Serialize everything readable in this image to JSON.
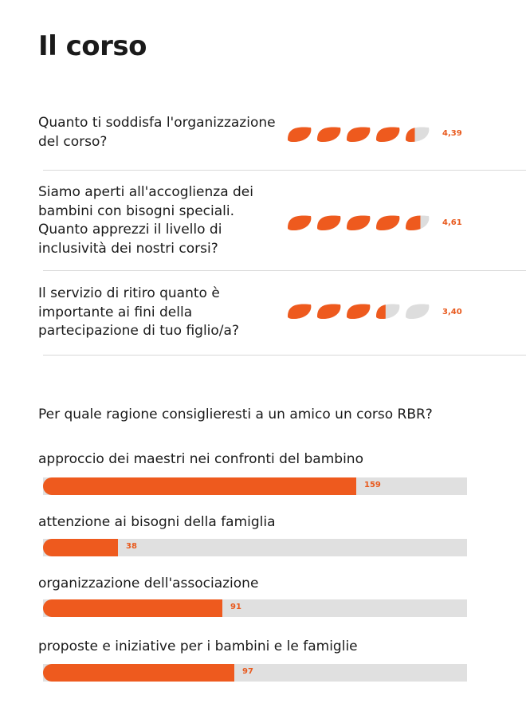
{
  "page": {
    "title": "Il corso"
  },
  "ratings": [
    {
      "question": "Quanto ti soddisfa l'organizzazione del corso?",
      "score_label": "4,39",
      "score": 4.39
    },
    {
      "question": "Siamo aperti all'accoglienza dei bambini con bisogni speciali. Quanto apprezzi il livello di inclusività dei nostri corsi?",
      "score_label": "4,61",
      "score": 4.61
    },
    {
      "question": "Il servizio di ritiro quanto è importante ai fini della partecipazione di tuo figlio/a?",
      "score_label": "3,40",
      "score": 3.4
    }
  ],
  "recommend": {
    "question": "Per quale ragione consiglieresti a un amico un corso RBR?"
  },
  "colors": {
    "accent": "#ee5a1e",
    "track": "#e0e0e0",
    "empty_icon": "#dddddd"
  },
  "chart_data": [
    {
      "type": "bar",
      "orientation": "horizontal",
      "title": "Per quale ragione consiglieresti a un amico un corso RBR?",
      "categories": [
        "approccio dei maestri nei confronti del bambino",
        "attenzione ai bisogni della famiglia",
        "organizzazione dell'associazione",
        "proposte e iniziative per i bambini e le famiglie"
      ],
      "values": [
        159,
        38,
        91,
        97
      ],
      "xlim": [
        0,
        215
      ]
    }
  ]
}
